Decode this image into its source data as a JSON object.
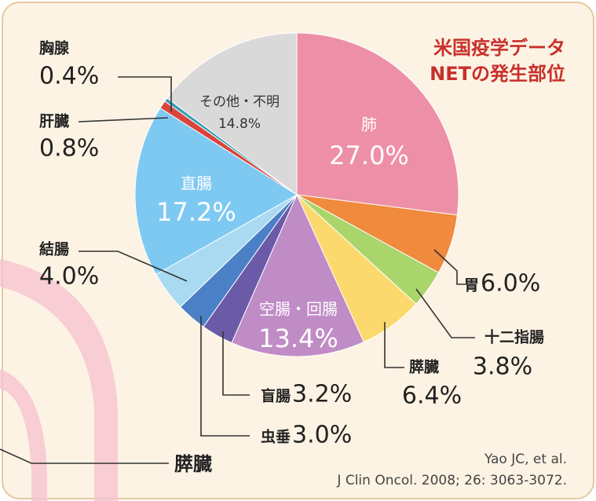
{
  "chart_data": {
    "type": "pie",
    "title": "米国疫学データ",
    "subtitle": "NETの発生部位",
    "categories": [
      "肺",
      "胃",
      "十二指腸",
      "膵臓",
      "空腸・回腸",
      "盲腸",
      "虫垂",
      "結腸",
      "直腸",
      "肝臓",
      "胸腺",
      "その他・不明"
    ],
    "values": [
      27.0,
      6.0,
      3.8,
      6.4,
      13.4,
      3.2,
      3.0,
      4.0,
      17.2,
      0.8,
      0.4,
      14.8
    ],
    "value_labels": [
      "27.0%",
      "6.0%",
      "3.8%",
      "6.4%",
      "13.4%",
      "3.2%",
      "3.0%",
      "4.0%",
      "17.2%",
      "0.8%",
      "0.4%",
      "14.8%"
    ],
    "colors": [
      "#ee8fa8",
      "#f08a3c",
      "#a9d56b",
      "#fbd96c",
      "#c08cc6",
      "#6b5aa8",
      "#4b80c6",
      "#a9daf2",
      "#7ec9f2",
      "#d9453c",
      "#3aa0b2",
      "#d9d9d9"
    ],
    "annotations": [
      "膵臓",
      "Yao JC, et al.",
      "J Clin Oncol. 2008; 26: 3063-3072."
    ]
  }
}
